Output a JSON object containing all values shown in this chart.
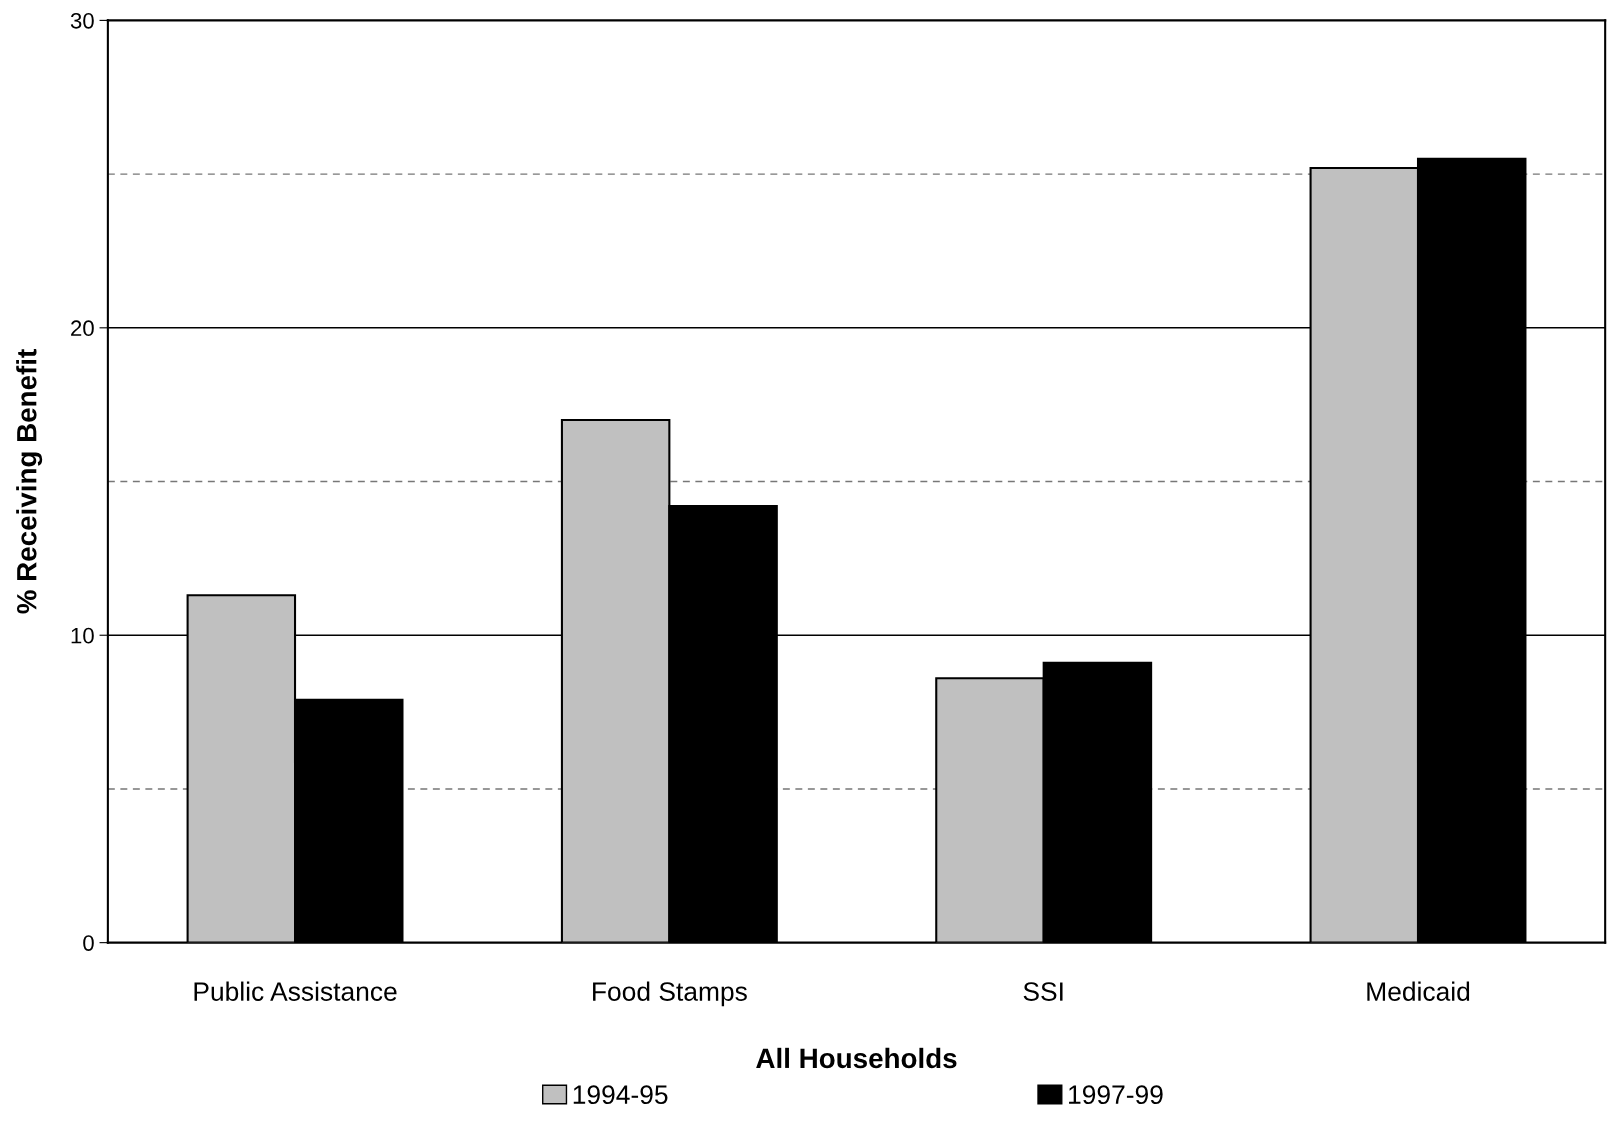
{
  "chart_data": {
    "type": "bar",
    "xlabel": "All Households",
    "ylabel": "% Receiving Benefit",
    "categories": [
      "Public Assistance",
      "Food Stamps",
      "SSI",
      "Medicaid"
    ],
    "series": [
      {
        "name": "1994-95",
        "color": "#c0c0c0",
        "values": [
          11.3,
          17.0,
          8.6,
          25.2
        ]
      },
      {
        "name": "1997-99",
        "color": "#000000",
        "values": [
          7.9,
          14.2,
          9.1,
          25.5
        ]
      }
    ],
    "ylim": [
      0,
      30
    ],
    "yticks": [
      0,
      {
        "value": 5,
        "label": null
      },
      10,
      {
        "value": 15,
        "label": null
      },
      20,
      {
        "value": 25,
        "label": null
      },
      30
    ],
    "grid": "y",
    "legend": "bottom"
  }
}
